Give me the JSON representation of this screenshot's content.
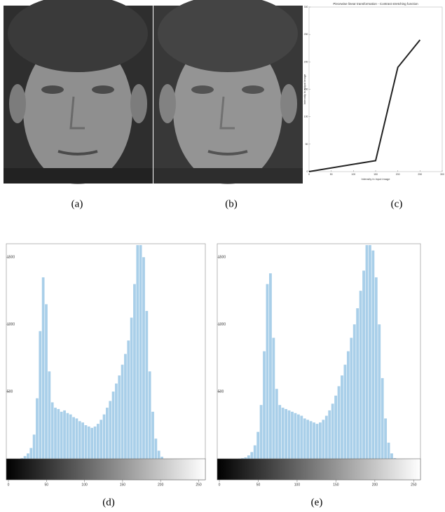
{
  "captions": [
    "(a)",
    "(b)",
    "(c)",
    "(d)",
    "(e)"
  ],
  "chart_data": [
    {
      "type": "line",
      "title": "Piecewise linear transformation - Contrast stretching function",
      "xlabel": "Intensity in input image",
      "ylabel": "Intensity in output image",
      "x": [
        0,
        150,
        200,
        250
      ],
      "values": [
        0,
        20,
        190,
        240
      ],
      "color": "#222222",
      "xlim": [
        0,
        300
      ],
      "ylim": [
        0,
        300
      ],
      "xticks": [
        0,
        50,
        100,
        150,
        200,
        250,
        300
      ],
      "yticks": [
        0,
        50,
        100,
        150,
        200,
        250,
        300
      ]
    },
    {
      "type": "histogram",
      "color": "#a9cfe9",
      "bins": [
        0,
        4,
        8,
        12,
        16,
        20,
        24,
        28,
        32,
        36,
        40,
        44,
        48,
        52,
        56,
        60,
        64,
        68,
        72,
        76,
        80,
        84,
        88,
        92,
        96,
        100,
        104,
        108,
        112,
        116,
        120,
        124,
        128,
        132,
        136,
        140,
        144,
        148,
        152,
        156,
        160,
        164,
        168,
        172,
        176,
        180,
        184,
        188,
        192,
        196,
        200,
        204,
        208,
        212,
        216,
        220,
        224,
        228,
        232,
        236,
        240,
        244,
        248,
        252,
        256
      ],
      "values": [
        0,
        0,
        0,
        0,
        5,
        20,
        40,
        80,
        180,
        450,
        950,
        1350,
        1150,
        650,
        420,
        380,
        370,
        350,
        360,
        340,
        330,
        310,
        300,
        280,
        270,
        250,
        240,
        230,
        240,
        260,
        290,
        330,
        380,
        430,
        500,
        560,
        620,
        700,
        780,
        880,
        1050,
        1300,
        1590,
        1590,
        1500,
        1100,
        650,
        350,
        150,
        60,
        15,
        0,
        0,
        0,
        0,
        0,
        0,
        0,
        0,
        0,
        0,
        0,
        0,
        0
      ],
      "xlim": [
        0,
        256
      ],
      "ylim": [
        0,
        1600
      ],
      "xticks": [
        0,
        50,
        100,
        150,
        200,
        250
      ],
      "yticks": [
        500,
        1000,
        1500
      ]
    },
    {
      "type": "histogram",
      "color": "#a9cfe9",
      "bins": [
        0,
        4,
        8,
        12,
        16,
        20,
        24,
        28,
        32,
        36,
        40,
        44,
        48,
        52,
        56,
        60,
        64,
        68,
        72,
        76,
        80,
        84,
        88,
        92,
        96,
        100,
        104,
        108,
        112,
        116,
        120,
        124,
        128,
        132,
        136,
        140,
        144,
        148,
        152,
        156,
        160,
        164,
        168,
        172,
        176,
        180,
        184,
        188,
        192,
        196,
        200,
        204,
        208,
        212,
        216,
        220,
        224,
        228,
        232,
        236,
        240,
        244,
        248,
        252,
        256
      ],
      "values": [
        0,
        0,
        0,
        0,
        0,
        0,
        2,
        5,
        10,
        25,
        50,
        100,
        200,
        400,
        800,
        1300,
        1380,
        900,
        520,
        400,
        380,
        370,
        360,
        350,
        340,
        330,
        320,
        300,
        290,
        280,
        270,
        260,
        270,
        290,
        320,
        360,
        410,
        470,
        540,
        620,
        700,
        800,
        900,
        1000,
        1120,
        1250,
        1400,
        1590,
        1590,
        1550,
        1350,
        1000,
        600,
        300,
        120,
        40,
        5,
        0,
        0,
        0,
        0,
        0,
        0,
        0
      ],
      "xlim": [
        0,
        256
      ],
      "ylim": [
        0,
        1600
      ],
      "xticks": [
        0,
        50,
        100,
        150,
        200,
        250
      ],
      "yticks": [
        500,
        1000,
        1500
      ]
    }
  ]
}
